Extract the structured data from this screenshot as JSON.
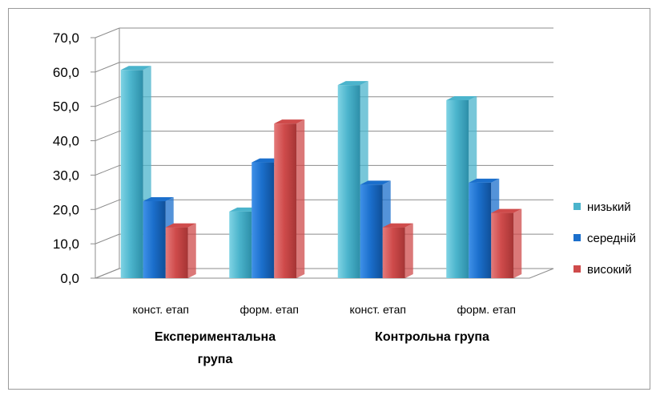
{
  "chart_data": {
    "type": "bar",
    "ylim": [
      0,
      70
    ],
    "ytick_labels": [
      "0,0",
      "10,0",
      "20,0",
      "30,0",
      "40,0",
      "50,0",
      "60,0",
      "70,0"
    ],
    "categories": [
      "конст. етап",
      "форм. етап",
      "конст. етап",
      "форм. етап"
    ],
    "groups": [
      "Експериментальна група",
      "Контрольна група"
    ],
    "series": [
      {
        "name": "низький",
        "color": "#4bb4cc",
        "values": [
          60.6,
          19.4,
          56.2,
          51.8
        ]
      },
      {
        "name": "середній",
        "color": "#1b6fcc",
        "values": [
          22.4,
          33.7,
          27.2,
          27.8
        ]
      },
      {
        "name": "високий",
        "color": "#cf4b4b",
        "values": [
          14.8,
          45.0,
          14.8,
          19.0
        ]
      }
    ],
    "legend_position": "right",
    "grid": true
  }
}
